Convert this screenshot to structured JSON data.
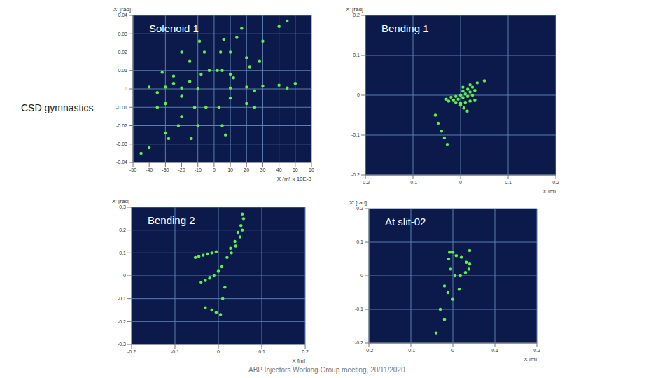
{
  "side_label": "CSD gymnastics",
  "footer": "ABP Injectors Working Group meeting, 20/11/2020",
  "chart_data": [
    {
      "type": "scatter",
      "title": "Solenoid 1",
      "x_label": "X (m) x 10E-3",
      "y_label": "X' [rad]",
      "color": "#5cf24a",
      "grid": true,
      "xlim": [
        -50,
        60
      ],
      "xticks": [
        -50,
        -40,
        -30,
        -20,
        -10,
        0,
        10,
        20,
        30,
        40,
        50,
        60
      ],
      "ylim": [
        -0.04,
        0.04
      ],
      "yticks": [
        -0.04,
        -0.03,
        -0.02,
        -0.01,
        0,
        0.01,
        0.02,
        0.03,
        0.04
      ],
      "x": [
        -40,
        -30,
        -20,
        -10,
        10,
        20,
        30,
        40,
        50,
        -35,
        -25,
        25,
        45,
        10,
        20,
        30,
        40,
        45,
        5,
        10,
        14,
        17,
        2,
        4,
        6,
        -3,
        -6,
        -9,
        -8,
        -15,
        -20,
        12,
        22,
        28,
        -15,
        -25,
        -32,
        -20,
        -30,
        -35,
        -5,
        -10,
        -14,
        3,
        5,
        7,
        -12,
        -22,
        -28,
        -20,
        -30,
        -40,
        -45,
        10,
        20,
        25
      ],
      "values": [
        0.001,
        0.001,
        0.0005,
        0,
        0.0005,
        0.001,
        0.0015,
        0.002,
        0.003,
        -0.002,
        0.003,
        -0.001,
        0.0005,
        0.008,
        0.017,
        0.026,
        0.034,
        0.037,
        0.01,
        0.02,
        0.028,
        0.033,
        0.01,
        0.02,
        0.027,
        0.01,
        0.02,
        0.026,
        0.008,
        0.015,
        0.02,
        0.006,
        0.012,
        0.015,
        0.004,
        0.007,
        0.009,
        -0.004,
        -0.008,
        -0.01,
        -0.01,
        -0.02,
        -0.027,
        -0.01,
        -0.02,
        -0.025,
        -0.01,
        -0.02,
        -0.027,
        -0.015,
        -0.024,
        -0.032,
        -0.035,
        -0.005,
        -0.008,
        -0.01
      ]
    },
    {
      "type": "scatter",
      "title": "Bending 1",
      "x_label": "X [m]",
      "y_label": "X' [rad]",
      "color": "#5cf24a",
      "grid": true,
      "xlim": [
        -0.2,
        0.2
      ],
      "xticks": [
        -0.2,
        -0.1,
        0,
        0.1,
        0.2
      ],
      "ylim": [
        -0.2,
        0.2
      ],
      "yticks": [
        -0.2,
        -0.1,
        0,
        0.1,
        0.2
      ],
      "x": [
        -0.03,
        -0.02,
        -0.01,
        0,
        0.01,
        0.02,
        0.03,
        -0.025,
        -0.015,
        -0.005,
        0.005,
        0.015,
        0.025,
        0.03,
        0.02,
        0.01,
        0,
        -0.01,
        0.005,
        0.015,
        0.025,
        0.005,
        0.02,
        0.035,
        0.05,
        0,
        0.007,
        0.014,
        -0.053,
        -0.047,
        -0.04,
        -0.034,
        -0.028
      ],
      "values": [
        -0.01,
        -0.005,
        -0.003,
        0,
        0.003,
        0.008,
        0.012,
        -0.015,
        -0.012,
        -0.01,
        -0.006,
        -0.003,
        0,
        -0.012,
        -0.015,
        -0.018,
        -0.02,
        -0.018,
        0.01,
        0.015,
        0.02,
        0.02,
        0.026,
        0.031,
        0.036,
        -0.025,
        -0.032,
        -0.04,
        -0.05,
        -0.07,
        -0.09,
        -0.107,
        -0.123
      ]
    },
    {
      "type": "scatter",
      "title": "Bending 2",
      "x_label": "X [m]",
      "y_label": "X' [rad]",
      "color": "#5cf24a",
      "grid": true,
      "xlim": [
        -0.2,
        0.2
      ],
      "xticks": [
        -0.2,
        -0.1,
        0,
        0.1,
        0.2
      ],
      "ylim": [
        -0.3,
        0.3
      ],
      "yticks": [
        -0.3,
        -0.2,
        -0.1,
        0,
        0.1,
        0.2,
        0.3
      ],
      "x": [
        -0.053,
        -0.04,
        -0.03,
        -0.045,
        -0.03,
        -0.015,
        -0.035,
        -0.02,
        -0.005,
        -0.025,
        -0.01,
        0.005,
        -0.015,
        0,
        0.01,
        -0.005,
        0.008,
        0.015,
        0.02,
        0.028,
        0.03,
        0.038,
        0.04,
        0.045,
        0.05,
        0.052,
        0.055,
        0.058,
        0.055
      ],
      "values": [
        0.08,
        -0.03,
        -0.14,
        0.085,
        -0.02,
        -0.15,
        0.09,
        -0.01,
        -0.16,
        0.095,
        0,
        -0.17,
        0.1,
        0.02,
        -0.1,
        0.105,
        0.04,
        -0.05,
        0.08,
        0.12,
        0.1,
        0.15,
        0.13,
        0.19,
        0.17,
        0.22,
        0.2,
        0.25,
        0.27
      ]
    },
    {
      "type": "scatter",
      "title": "At slit-02",
      "x_label": "X [m]",
      "y_label": "X' [rad]",
      "color": "#5cf24a",
      "grid": true,
      "xlim": [
        -0.2,
        0.2
      ],
      "xticks": [
        -0.2,
        -0.1,
        0,
        0.1,
        0.2
      ],
      "ylim": [
        -0.2,
        0.2
      ],
      "yticks": [
        -0.2,
        -0.1,
        0,
        0.1,
        0.2
      ],
      "x": [
        -0.04,
        -0.03,
        -0.02,
        -0.01,
        -0.008,
        -0.02,
        -0.012,
        -0.005,
        0,
        0,
        0.005,
        0.008,
        0.015,
        0.018,
        0.02,
        0.03,
        0.032,
        0.038,
        0.04,
        0.04
      ],
      "values": [
        -0.17,
        -0.1,
        -0.03,
        0.05,
        0.07,
        -0.13,
        -0.05,
        0.02,
        0.07,
        -0.07,
        0,
        0.06,
        -0.04,
        0,
        0.055,
        0.01,
        0.04,
        0.02,
        0.035,
        0.075
      ]
    }
  ]
}
